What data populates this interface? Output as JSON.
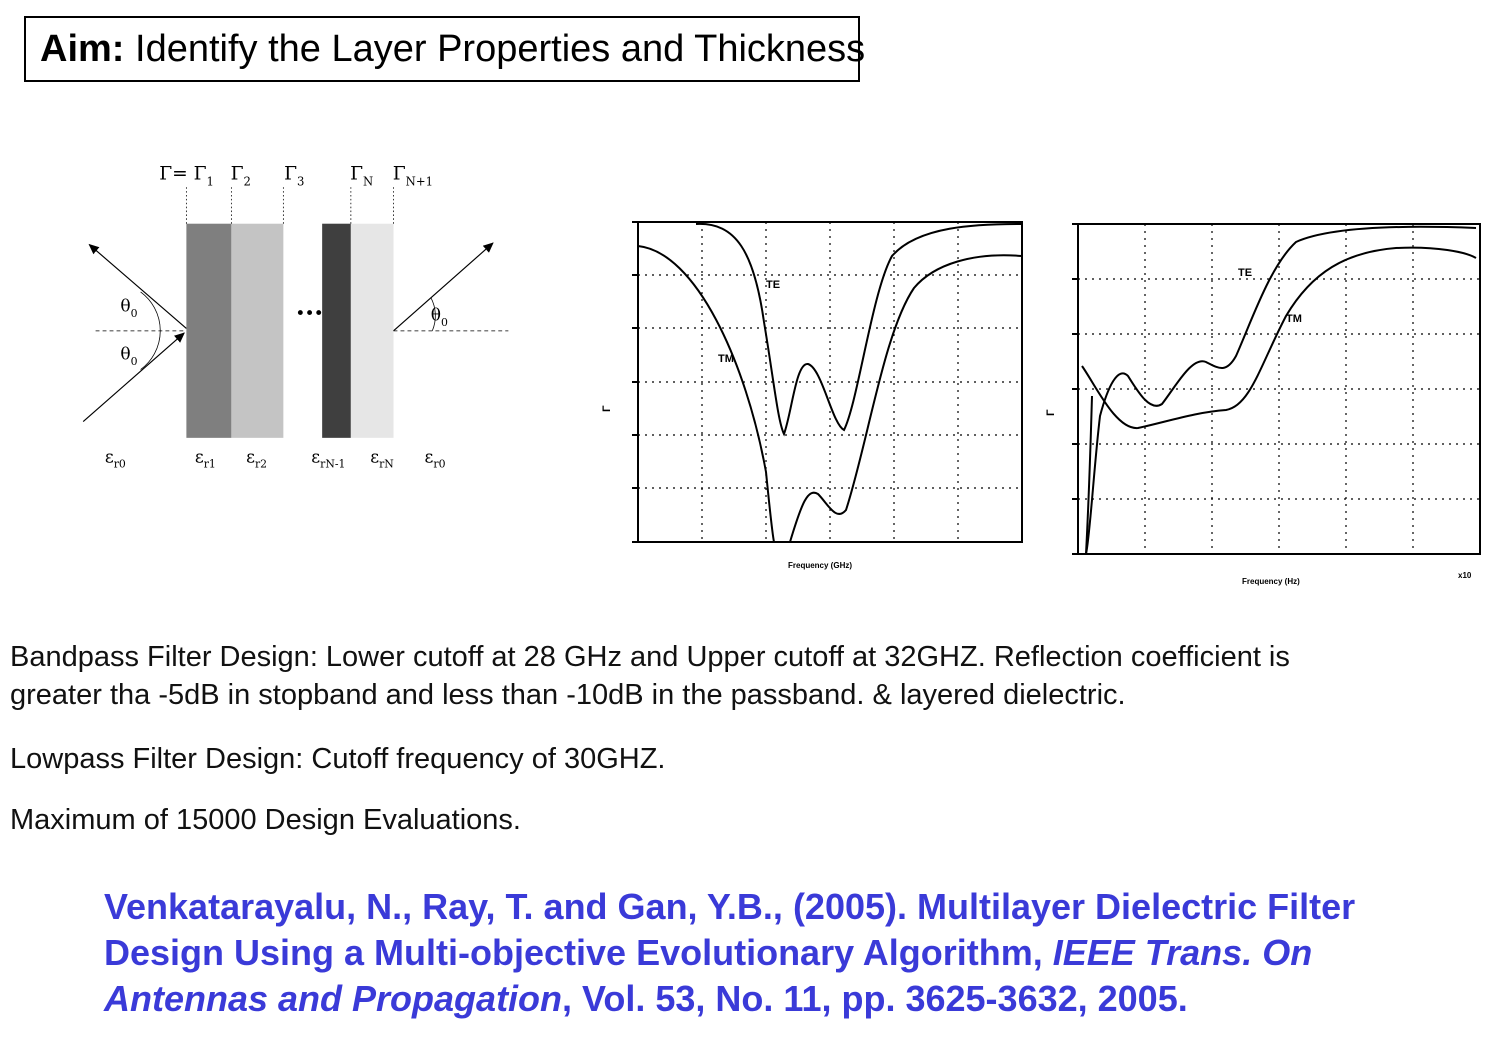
{
  "aim": {
    "label": "Aim:",
    "text": "Identify the Layer Properties and Thickness"
  },
  "diagram": {
    "gamma_labels": [
      {
        "main": "Γ= Γ",
        "sub": "1"
      },
      {
        "main": "Γ",
        "sub": "2"
      },
      {
        "main": "Γ",
        "sub": "3"
      },
      {
        "main": "Γ",
        "sub": "N"
      },
      {
        "main": "Γ",
        "sub": "N+1"
      }
    ],
    "theta_label": "θ",
    "theta_sub": "0",
    "ellipsis": "...",
    "epsilon_labels": [
      {
        "main": "ε",
        "sub": "r0"
      },
      {
        "main": "ε",
        "sub": "r1"
      },
      {
        "main": "ε",
        "sub": "r2"
      },
      {
        "main": "ε",
        "sub": "rN-1"
      },
      {
        "main": "ε",
        "sub": "rN"
      },
      {
        "main": "ε",
        "sub": "r0"
      }
    ],
    "layer_colors": [
      "#7f7f7f",
      "#c4c4c4",
      "#3f3f3f",
      "#e6e6e6"
    ]
  },
  "plot1": {
    "curve_labels": [
      "TE",
      "TM"
    ],
    "ylabel": "Γ",
    "xlabel": "Frequency (GHz)"
  },
  "plot2": {
    "curve_labels": [
      "TE",
      "TM"
    ],
    "ylabel": "Γ",
    "xlabel": "Frequency (Hz)",
    "exponent": "x10"
  },
  "requirements": {
    "bandpass_line1": "Bandpass Filter Design: Lower cutoff at 28 GHz and Upper cutoff at 32GHZ. Reflection coefficient is",
    "bandpass_line2": "greater tha -5dB in stopband and less than -10dB in the passband. & layered dielectric.",
    "lowpass": "Lowpass Filter Design: Cutoff frequency of 30GHZ.",
    "evaluations": "Maximum of 15000 Design Evaluations."
  },
  "citation": {
    "part1": "Venkatarayalu, N., Ray, T. and Gan, Y.B., (2005). Multilayer Dielectric Filter Design Using a Multi-objective Evolutionary Algorithm, ",
    "journal": "IEEE Trans. On Antennas and Propagation",
    "part2": ", Vol. 53, No. 11, pp. 3625-3632, 2005.",
    "color": "#3a3ad8"
  }
}
